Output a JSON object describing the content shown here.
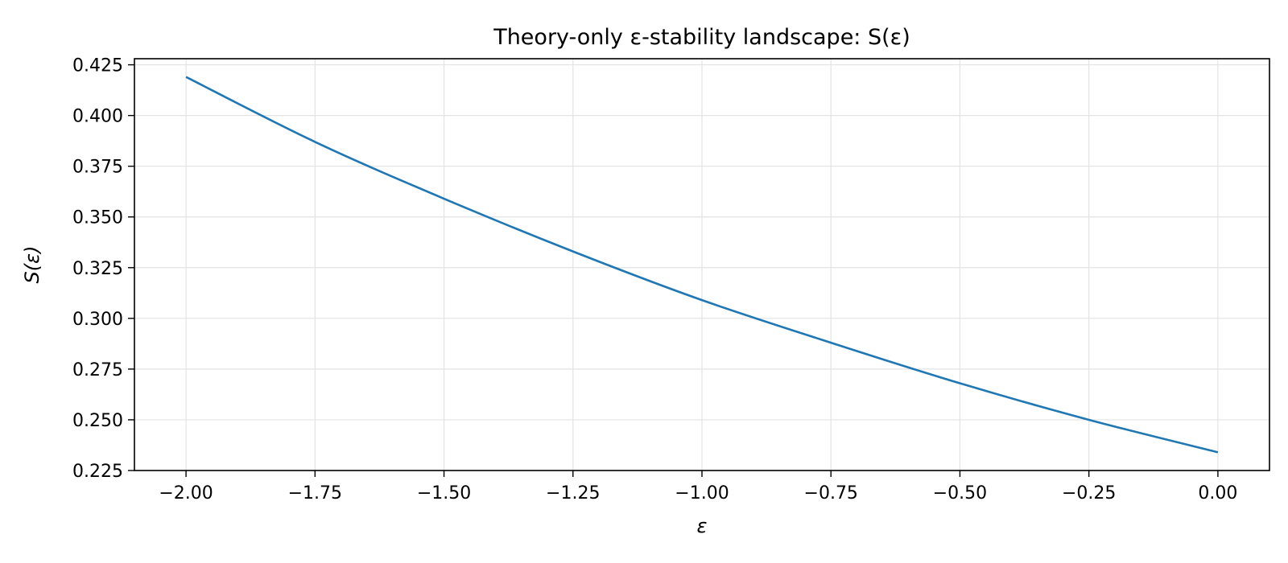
{
  "chart_data": {
    "type": "line",
    "title": "Theory-only ε-stability landscape: S(ε)",
    "xlabel": "ε",
    "ylabel": "S(ε)",
    "xlim": [
      -2.1,
      0.1
    ],
    "ylim": [
      0.225,
      0.428
    ],
    "xticks": [
      -2.0,
      -1.75,
      -1.5,
      -1.25,
      -1.0,
      -0.75,
      -0.5,
      -0.25,
      0.0
    ],
    "xtick_labels": [
      "−2.00",
      "−1.75",
      "−1.50",
      "−1.25",
      "−1.00",
      "−0.75",
      "−0.50",
      "−0.25",
      "0.00"
    ],
    "yticks": [
      0.225,
      0.25,
      0.275,
      0.3,
      0.325,
      0.35,
      0.375,
      0.4,
      0.425
    ],
    "ytick_labels": [
      "0.225",
      "0.250",
      "0.275",
      "0.300",
      "0.325",
      "0.350",
      "0.375",
      "0.400",
      "0.425"
    ],
    "grid": true,
    "series": [
      {
        "color": "#1f77b4",
        "x": [
          -2.0,
          -1.75,
          -1.5,
          -1.25,
          -1.0,
          -0.75,
          -0.5,
          -0.25,
          0.0
        ],
        "y": [
          0.419,
          0.387,
          0.359,
          0.333,
          0.309,
          0.288,
          0.268,
          0.25,
          0.234
        ]
      }
    ]
  }
}
